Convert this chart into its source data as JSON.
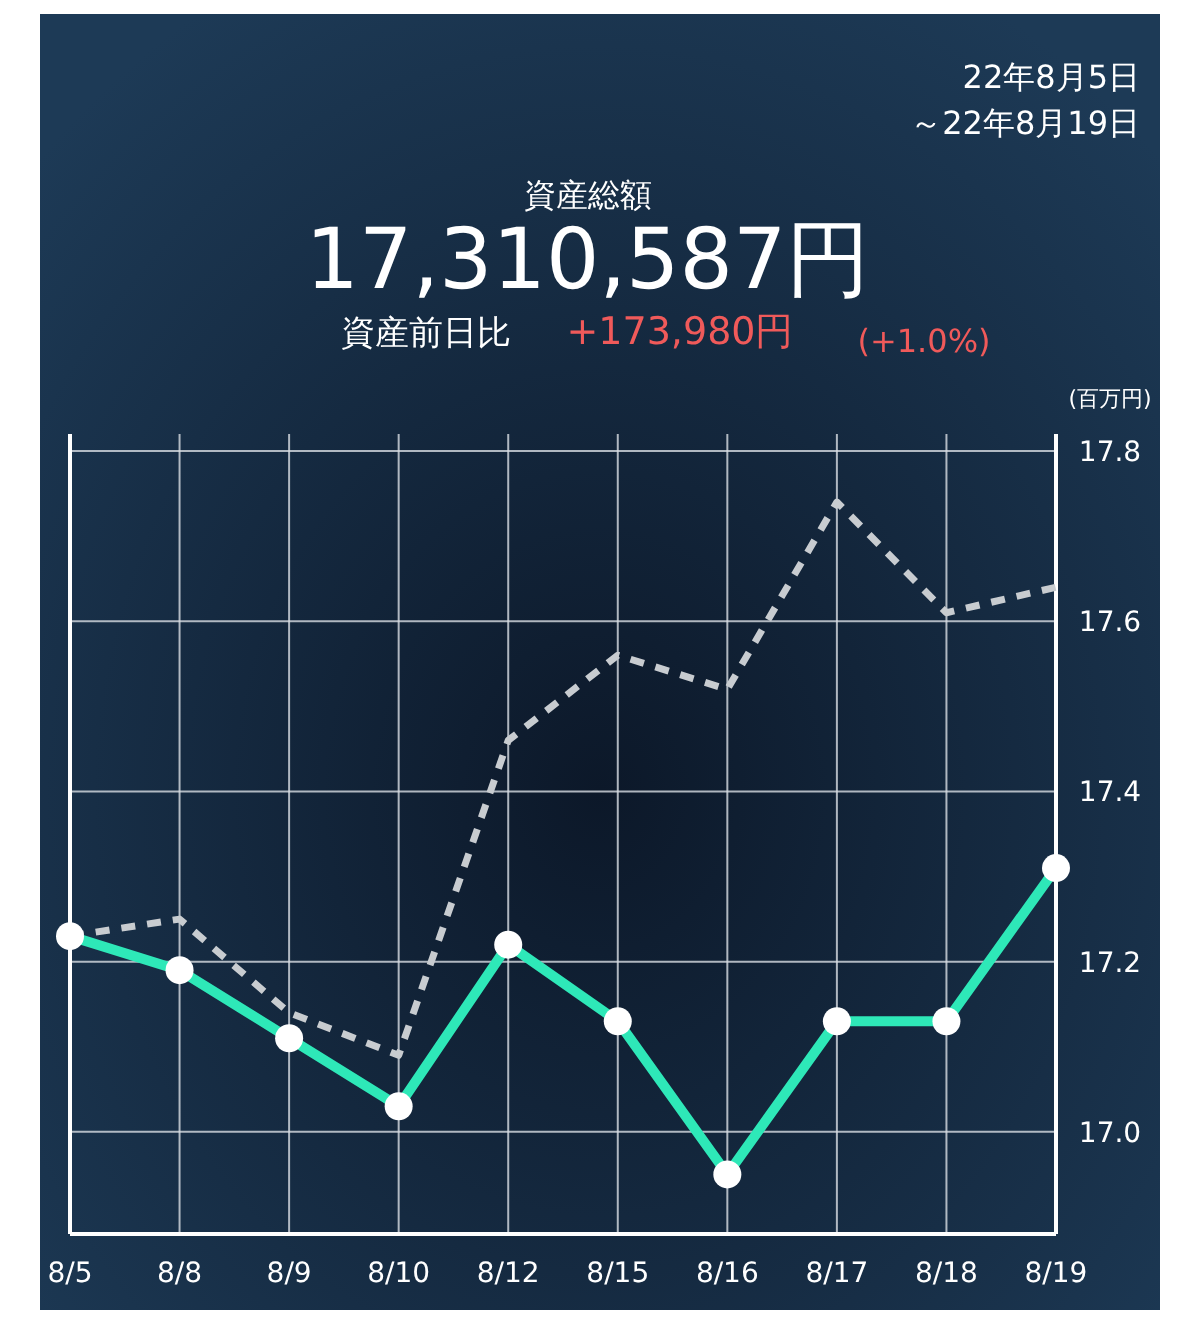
{
  "chart_data": {
    "type": "line",
    "title": "資産総額",
    "subtitle": "17,310,587円",
    "ylabel": "(百万円)",
    "annotations": [
      "22年8月5日",
      "～22年8月19日",
      "資産前日比",
      "+173,980円",
      "(+1.0%)"
    ],
    "categories": [
      "8/5",
      "8/8",
      "8/9",
      "8/10",
      "8/12",
      "8/15",
      "8/16",
      "8/17",
      "8/18",
      "8/19"
    ],
    "series": [
      {
        "color": "#c8ccd0",
        "line_style": "dashed",
        "marker": "none",
        "values": [
          17.23,
          17.25,
          17.14,
          17.09,
          17.46,
          17.56,
          17.52,
          17.74,
          17.61,
          17.64
        ]
      },
      {
        "color": "#2ee8b8",
        "line_style": "solid",
        "marker": "circle",
        "values": [
          17.23,
          17.19,
          17.11,
          17.03,
          17.22,
          17.13,
          16.95,
          17.13,
          17.13,
          17.31
        ]
      }
    ],
    "ylim": [
      16.88,
      17.82
    ],
    "yticks": [
      {
        "value": 17,
        "label": "17.0"
      },
      17.2,
      17.4,
      17.6,
      17.8
    ],
    "grid": true
  }
}
